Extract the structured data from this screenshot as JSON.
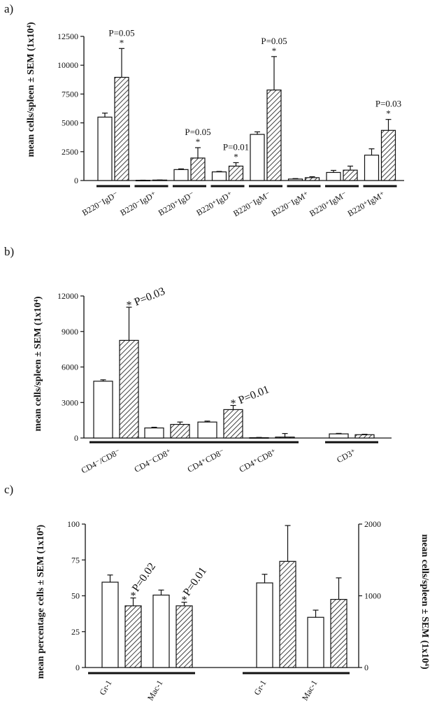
{
  "colors": {
    "ink": "#111111",
    "control_fill": "#ffffff",
    "treated_fill": "hatched"
  },
  "panels": {
    "a": "a)",
    "b": "b)",
    "c": "c)"
  },
  "chart_data": [
    {
      "type": "bar",
      "panel": "a",
      "ylabel": "mean cells/spleen ± SEM (1x10⁴)",
      "ylim": [
        0,
        12500
      ],
      "yticks": [
        0,
        2500,
        5000,
        7500,
        10000,
        12500
      ],
      "categories": [
        "B220⁻IgD⁻",
        "B220⁻IgD⁺",
        "B220⁺IgD⁻",
        "B220⁺IgD⁺",
        "B220⁻IgM⁻",
        "B220⁻IgM⁺",
        "B220⁺IgM⁻",
        "B220⁺IgM⁺"
      ],
      "series": [
        {
          "style": "open",
          "values": [
            5500,
            20,
            950,
            750,
            4000,
            130,
            700,
            2200
          ],
          "errors": [
            350,
            10,
            60,
            40,
            220,
            40,
            180,
            550
          ]
        },
        {
          "style": "hatched",
          "values": [
            8950,
            40,
            1950,
            1250,
            7850,
            250,
            900,
            4350
          ],
          "errors": [
            2500,
            10,
            900,
            300,
            2900,
            80,
            350,
            950
          ]
        }
      ],
      "annotations": [
        {
          "category": 0,
          "text": "P=0.05",
          "star": "*"
        },
        {
          "category": 2,
          "text": "P=0.05",
          "star": "*"
        },
        {
          "category": 3,
          "text": "P=0.01",
          "star": "*"
        },
        {
          "category": 4,
          "text": "P=0.05",
          "star": "*"
        },
        {
          "category": 7,
          "text": "P=0.03",
          "star": "*"
        }
      ]
    },
    {
      "type": "bar",
      "panel": "b",
      "ylabel": "mean cells/spleen ± SEM (1x10⁴)",
      "ylim": [
        0,
        12000
      ],
      "yticks": [
        0,
        3000,
        6000,
        9000,
        12000
      ],
      "categories": [
        "CD4⁻/CD8⁻",
        "CD4⁻CD8⁺",
        "CD4⁺CD8⁻",
        "CD4⁺CD8⁺",
        "CD3⁺"
      ],
      "series": [
        {
          "style": "open",
          "values": [
            4800,
            850,
            1350,
            30,
            350
          ],
          "errors": [
            120,
            60,
            80,
            20,
            40
          ]
        },
        {
          "style": "hatched",
          "values": [
            8250,
            1150,
            2400,
            80,
            280
          ],
          "errors": [
            2800,
            200,
            350,
            300,
            40
          ]
        }
      ],
      "annotations": [
        {
          "category": 0,
          "text": "P=0.03",
          "star": "*"
        },
        {
          "category": 2,
          "text": "P=0.01",
          "star": "*"
        }
      ]
    },
    {
      "type": "bar",
      "panel": "c",
      "ylabel": "mean percentage cells ± SEM (1x10⁴)",
      "ylabel_right": "mean cells/spleen ± SEM (1x10⁴)",
      "ylim": [
        0,
        100
      ],
      "yticks": [
        0,
        25,
        50,
        75,
        100
      ],
      "ylim_right": [
        0,
        2000
      ],
      "yticks_right": [
        0,
        1000,
        2000
      ],
      "groups": [
        {
          "axis": "left",
          "categories": [
            "Gr-1",
            "Mac-1"
          ],
          "series": [
            {
              "style": "open",
              "values": [
                59.5,
                50.5
              ],
              "errors": [
                5,
                3.5
              ]
            },
            {
              "style": "hatched",
              "values": [
                43,
                43
              ],
              "errors": [
                5.5,
                2.5
              ]
            }
          ],
          "annotations": [
            {
              "category": 0,
              "text": "P=0.02",
              "star": "*"
            },
            {
              "category": 1,
              "text": "P=0.01",
              "star": "*"
            }
          ]
        },
        {
          "axis": "right",
          "categories": [
            "Gr-1",
            "Mac-1"
          ],
          "series": [
            {
              "style": "open",
              "values": [
                1180,
                700
              ],
              "errors": [
                120,
                100
              ]
            },
            {
              "style": "hatched",
              "values": [
                1480,
                950
              ],
              "errors": [
                500,
                300
              ]
            }
          ]
        }
      ]
    }
  ]
}
